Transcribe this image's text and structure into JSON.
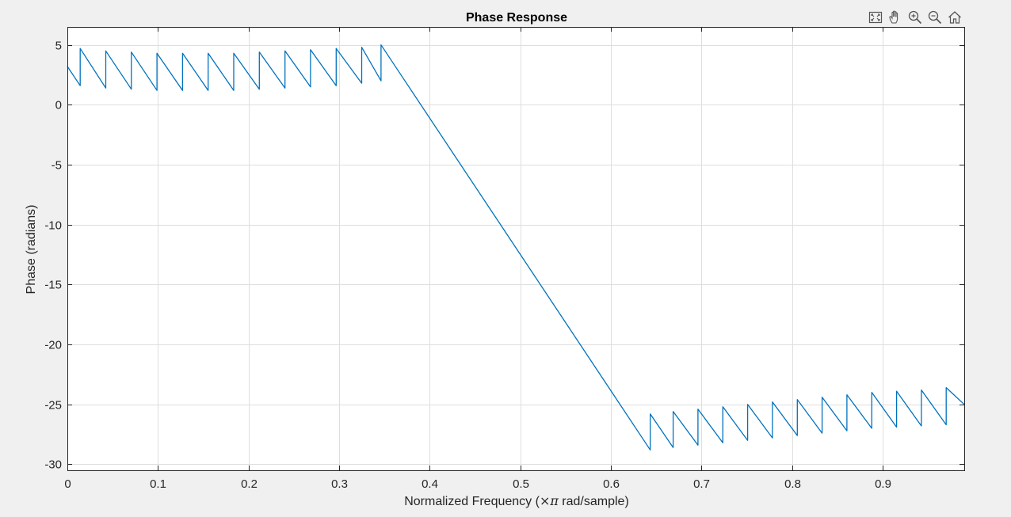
{
  "toolbar": {
    "icons": [
      "restore-view-icon",
      "pan-hand-icon",
      "zoom-in-icon",
      "zoom-out-icon",
      "home-icon"
    ]
  },
  "colors": {
    "background": "#f0f0f0",
    "axes_background": "#ffffff",
    "line": "#0072bd",
    "grid": "#dedede",
    "axis": "#262626"
  },
  "chart_data": {
    "type": "line",
    "title": "Phase Response",
    "xlabel_main": "Normalized  Frequency  (",
    "xlabel_symbol": "×π",
    "xlabel_unit": " rad/sample)",
    "ylabel": "Phase (radians)",
    "xlim": [
      0,
      0.99
    ],
    "ylim": [
      -30.5,
      6.5
    ],
    "xticks": [
      0,
      0.1,
      0.2,
      0.3,
      0.4,
      0.5,
      0.6,
      0.7,
      0.8,
      0.9
    ],
    "xtick_labels": [
      "0",
      "0.1",
      "0.2",
      "0.3",
      "0.4",
      "0.5",
      "0.6",
      "0.7",
      "0.8",
      "0.9"
    ],
    "yticks": [
      5,
      0,
      -5,
      -10,
      -15,
      -20,
      -25,
      -30
    ],
    "ytick_labels": [
      "5",
      "0",
      "-5",
      "-10",
      "-15",
      "-20",
      "-25",
      "-30"
    ],
    "grid": true,
    "series": [
      {
        "x": [
          0,
          0.0142,
          0.0142,
          0.0424,
          0.0424,
          0.0707,
          0.0707,
          0.0989,
          0.0989,
          0.1272,
          0.1272,
          0.1554,
          0.1554,
          0.1837,
          0.1837,
          0.2119,
          0.2119,
          0.2402,
          0.2402,
          0.2684,
          0.2684,
          0.2967,
          0.2967,
          0.3249,
          0.3249,
          0.3462,
          0.3462,
          0.6434,
          0.6434,
          0.6687,
          0.6687,
          0.6961,
          0.6961,
          0.7235,
          0.7235,
          0.7509,
          0.7509,
          0.7783,
          0.7783,
          0.8057,
          0.8057,
          0.8331,
          0.8331,
          0.8605,
          0.8605,
          0.8879,
          0.8879,
          0.9153,
          0.9153,
          0.9427,
          0.9427,
          0.9701,
          0.9701,
          0.99
        ],
        "y": [
          3.2,
          1.6,
          4.7,
          1.4,
          4.5,
          1.3,
          4.4,
          1.2,
          4.3,
          1.2,
          4.3,
          1.2,
          4.3,
          1.2,
          4.3,
          1.3,
          4.4,
          1.4,
          4.5,
          1.5,
          4.6,
          1.6,
          4.7,
          1.8,
          4.8,
          2.0,
          5.0,
          -28.8,
          -25.8,
          -28.6,
          -25.6,
          -28.4,
          -25.4,
          -28.2,
          -25.2,
          -28.0,
          -25.0,
          -27.8,
          -24.8,
          -27.6,
          -24.6,
          -27.4,
          -24.4,
          -27.2,
          -24.2,
          -27.0,
          -24.0,
          -26.9,
          -23.9,
          -26.8,
          -23.8,
          -26.7,
          -23.6,
          -25.0
        ]
      }
    ]
  }
}
